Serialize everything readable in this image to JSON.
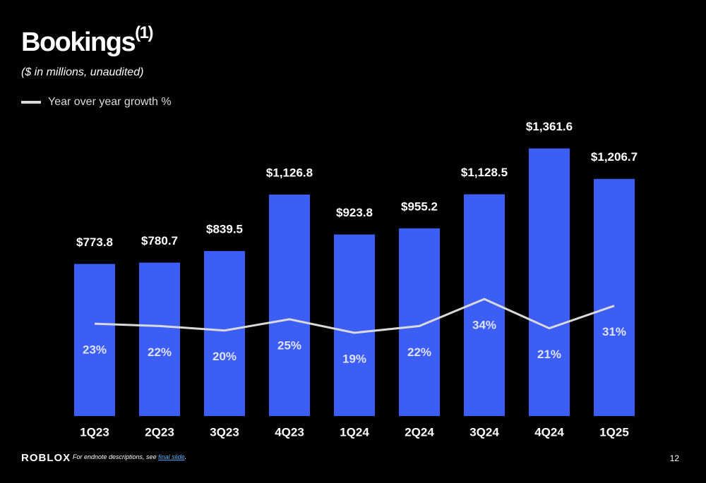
{
  "chart_data": {
    "type": "bar",
    "title": "Bookings",
    "title_note": "(1)",
    "subtitle": "($ in millions, unaudited)",
    "categories": [
      "1Q23",
      "2Q23",
      "3Q23",
      "4Q23",
      "1Q24",
      "2Q24",
      "3Q24",
      "4Q24",
      "1Q25"
    ],
    "series": [
      {
        "color": "#3d5ef5",
        "values": [
          773.8,
          780.7,
          839.5,
          1126.8,
          923.8,
          955.2,
          1128.5,
          1361.6,
          1206.7
        ],
        "value_labels": [
          "$773.8",
          "$780.7",
          "$839.5",
          "$1,126.8",
          "$923.8",
          "$955.2",
          "$1,128.5",
          "$1,361.6",
          "$1,206.7"
        ]
      },
      {
        "name": "Year over year growth %",
        "type": "line",
        "axis": "y2",
        "color": "#d9d9d9",
        "values": [
          23,
          22,
          20,
          25,
          19,
          22,
          34,
          21,
          31
        ],
        "value_labels": [
          "23%",
          "22%",
          "20%",
          "25%",
          "19%",
          "22%",
          "34%",
          "21%",
          "31%"
        ]
      }
    ],
    "ylim": [
      0,
      1500
    ],
    "y2lim": [
      -18,
      113
    ],
    "legend": "top-left",
    "footer": {
      "logo": "ROBLOX",
      "note": "For endnote descriptions, see ",
      "link": "final slide",
      "note_end": ".",
      "page": "12"
    }
  }
}
